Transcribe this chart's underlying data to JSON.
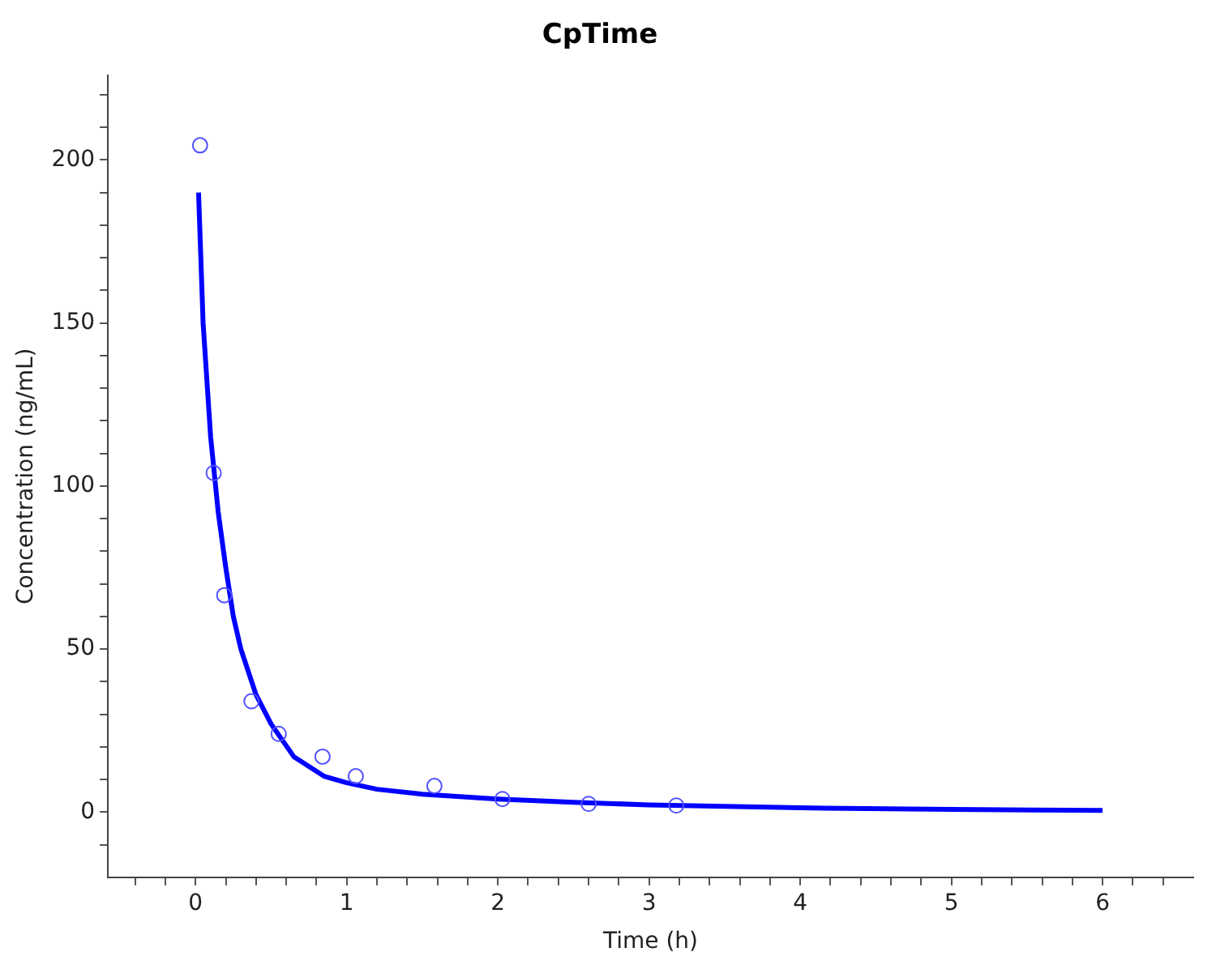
{
  "chart_data": {
    "type": "scatter",
    "title": "CpTime",
    "xlabel": "Time (h)",
    "ylabel": "Concentration (ng/mL)",
    "xlim": [
      -0.58,
      6.6
    ],
    "ylim": [
      -20,
      226
    ],
    "xticks": [
      {
        "value": -0.4,
        "label": null
      },
      {
        "value": -0.2,
        "label": null
      },
      0,
      {
        "value": 0.2,
        "label": null
      },
      {
        "value": 0.4,
        "label": null
      },
      {
        "value": 0.6,
        "label": null
      },
      {
        "value": 0.8,
        "label": null
      },
      1,
      {
        "value": 1.2,
        "label": null
      },
      {
        "value": 1.4,
        "label": null
      },
      {
        "value": 1.6,
        "label": null
      },
      {
        "value": 1.8,
        "label": null
      },
      2,
      {
        "value": 2.2,
        "label": null
      },
      {
        "value": 2.4,
        "label": null
      },
      {
        "value": 2.6,
        "label": null
      },
      {
        "value": 2.8,
        "label": null
      },
      3,
      {
        "value": 3.2,
        "label": null
      },
      {
        "value": 3.4,
        "label": null
      },
      {
        "value": 3.6,
        "label": null
      },
      {
        "value": 3.8,
        "label": null
      },
      4,
      {
        "value": 4.2,
        "label": null
      },
      {
        "value": 4.4,
        "label": null
      },
      {
        "value": 4.6,
        "label": null
      },
      {
        "value": 4.8,
        "label": null
      },
      5,
      {
        "value": 5.2,
        "label": null
      },
      {
        "value": 5.4,
        "label": null
      },
      {
        "value": 5.6,
        "label": null
      },
      {
        "value": 5.8,
        "label": null
      },
      6,
      {
        "value": 6.2,
        "label": null
      },
      {
        "value": 6.4,
        "label": null
      }
    ],
    "yticks": [
      {
        "value": -10,
        "label": null
      },
      0,
      {
        "value": 10,
        "label": null
      },
      {
        "value": 20,
        "label": null
      },
      {
        "value": 30,
        "label": null
      },
      {
        "value": 40,
        "label": null
      },
      50,
      {
        "value": 60,
        "label": null
      },
      {
        "value": 70,
        "label": null
      },
      {
        "value": 80,
        "label": null
      },
      {
        "value": 90,
        "label": null
      },
      100,
      {
        "value": 110,
        "label": null
      },
      {
        "value": 120,
        "label": null
      },
      {
        "value": 130,
        "label": null
      },
      {
        "value": 140,
        "label": null
      },
      150,
      {
        "value": 160,
        "label": null
      },
      {
        "value": 170,
        "label": null
      },
      {
        "value": 180,
        "label": null
      },
      {
        "value": 190,
        "label": null
      },
      200,
      {
        "value": 210,
        "label": null
      },
      {
        "value": 220,
        "label": null
      }
    ],
    "grid": false,
    "legend": false,
    "series": [
      {
        "marker": "circle",
        "color": "#5050ff",
        "x": [
          0.03,
          0.12,
          0.19,
          0.37,
          0.55,
          0.84,
          1.06,
          1.58,
          2.03,
          2.6,
          3.18
        ],
        "values": [
          204.5,
          104,
          66.5,
          34,
          24,
          17,
          11,
          8,
          4,
          2.5,
          2
        ]
      },
      {
        "type": "line",
        "marker": "none",
        "line_style": "solid",
        "color": "#0000ff",
        "x": [
          0.02,
          0.05,
          0.1,
          0.15,
          0.2,
          0.25,
          0.3,
          0.4,
          0.5,
          0.65,
          0.85,
          1.0,
          1.2,
          1.5,
          2,
          2.5,
          3,
          4,
          5,
          6
        ],
        "values": [
          190,
          150,
          115,
          92,
          75,
          60,
          50,
          36,
          27,
          17,
          11,
          9,
          7,
          5.5,
          4,
          3,
          2.2,
          1.3,
          0.8,
          0.5
        ]
      }
    ]
  }
}
